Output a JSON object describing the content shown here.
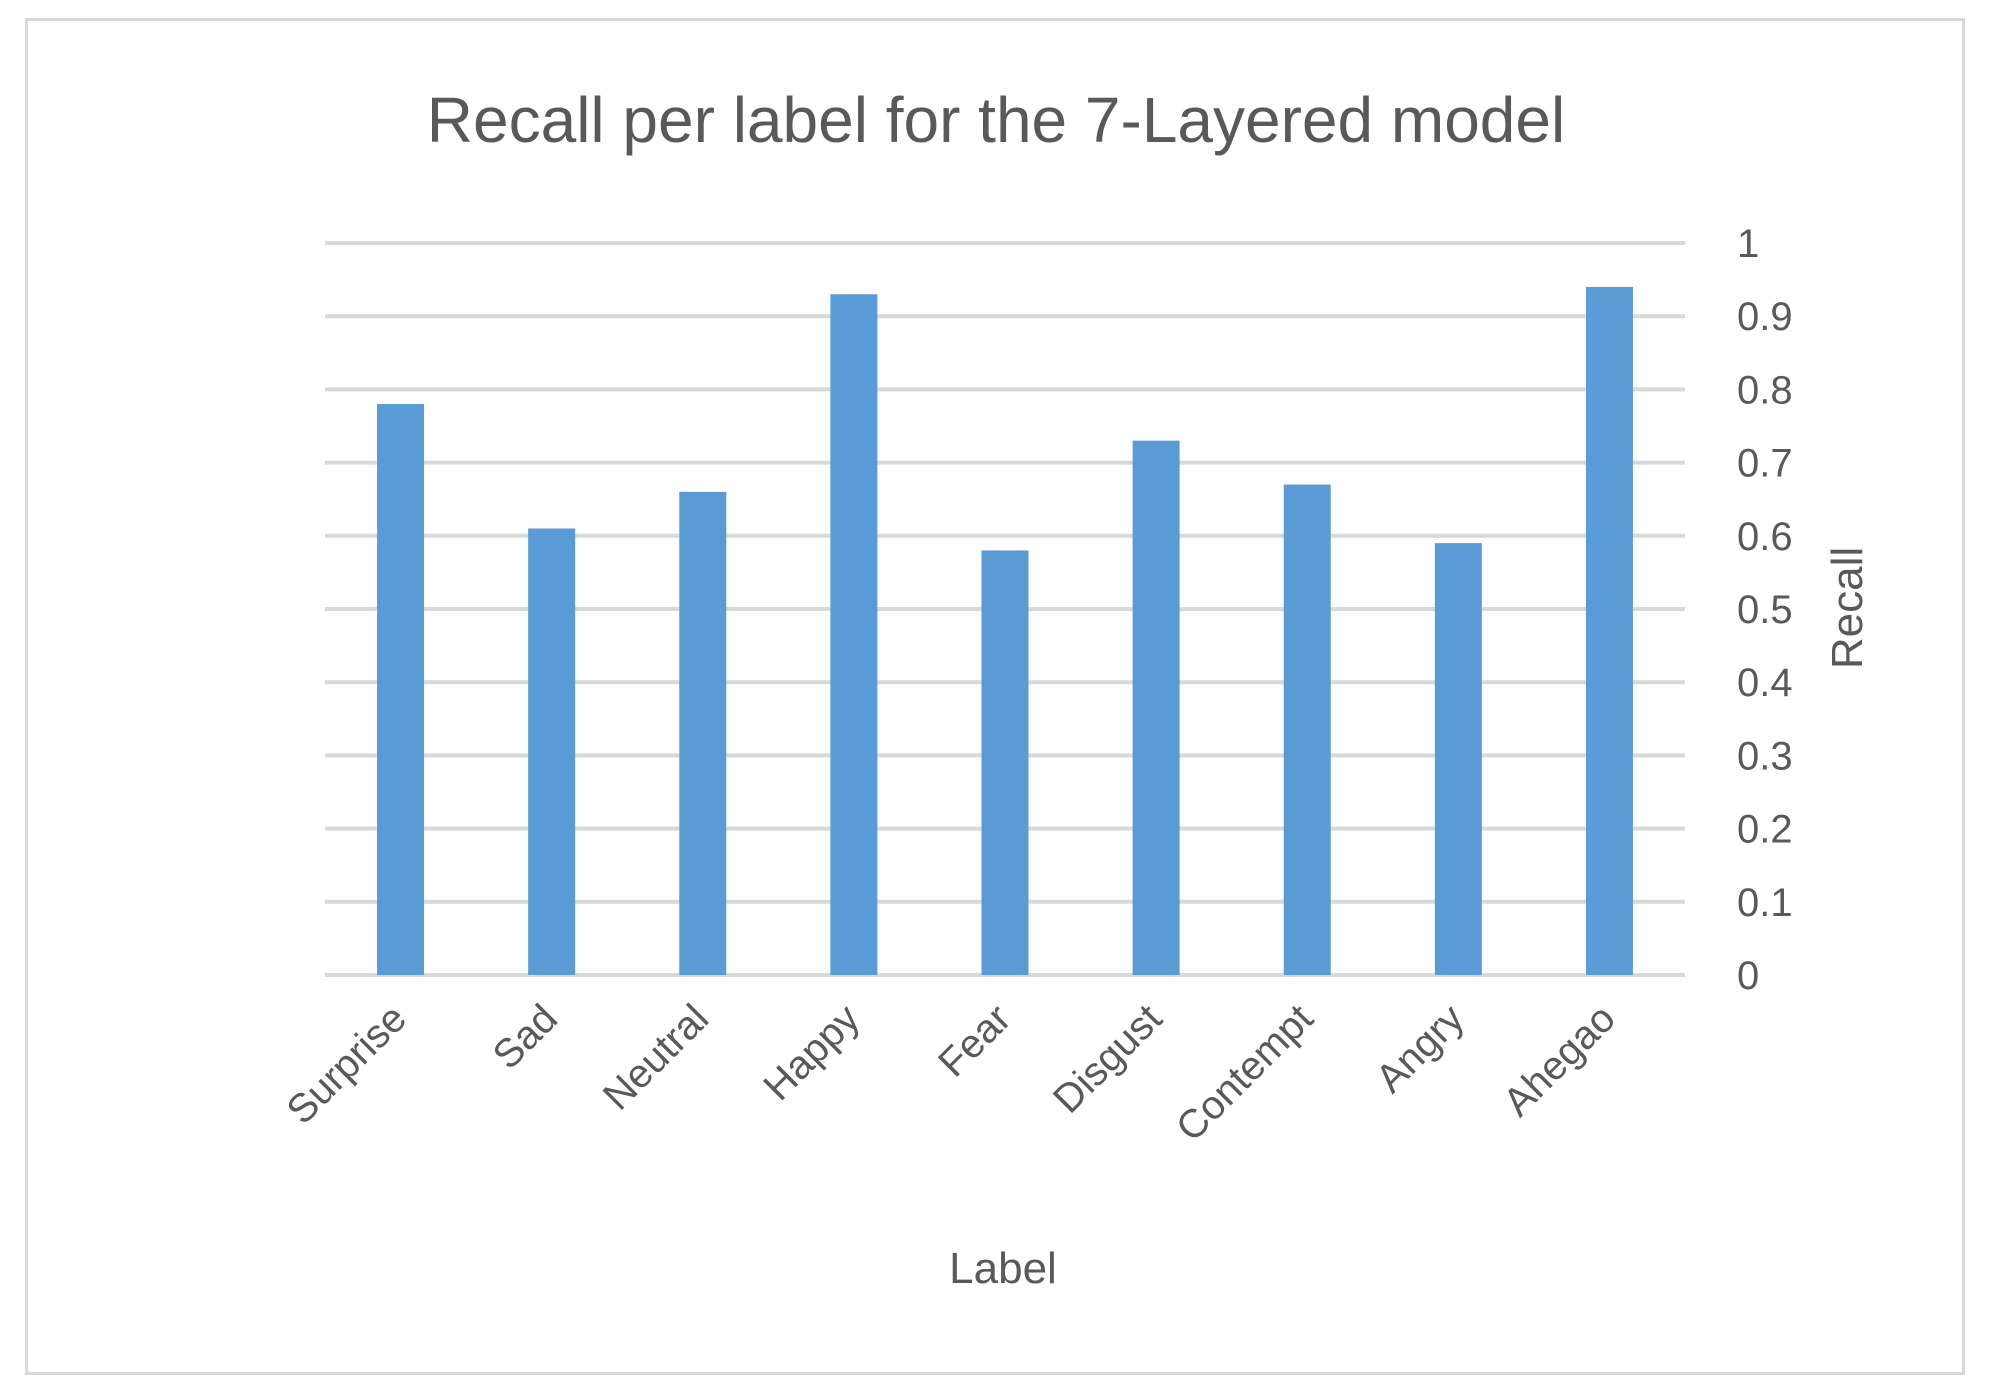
{
  "chart_data": {
    "type": "bar",
    "title": "Recall per label for the 7-Layered model",
    "xlabel": "Label",
    "ylabel": "Recall",
    "categories": [
      "Surprise",
      "Sad",
      "Neutral",
      "Happy",
      "Fear",
      "Disgust",
      "Contempt",
      "Angry",
      "Ahegao"
    ],
    "values": [
      0.78,
      0.61,
      0.66,
      0.93,
      0.58,
      0.73,
      0.67,
      0.59,
      0.94
    ],
    "ylim": [
      0,
      1
    ],
    "yticks": [
      "0",
      "0.1",
      "0.2",
      "0.3",
      "0.4",
      "0.5",
      "0.6",
      "0.7",
      "0.8",
      "0.9",
      "1"
    ],
    "y_axis_side": "right",
    "grid": true,
    "legend": "none",
    "colors": {
      "bar": "#5b9bd5",
      "grid": "#d9d9d9",
      "text": "#595959",
      "border": "#d9d9d9"
    }
  }
}
